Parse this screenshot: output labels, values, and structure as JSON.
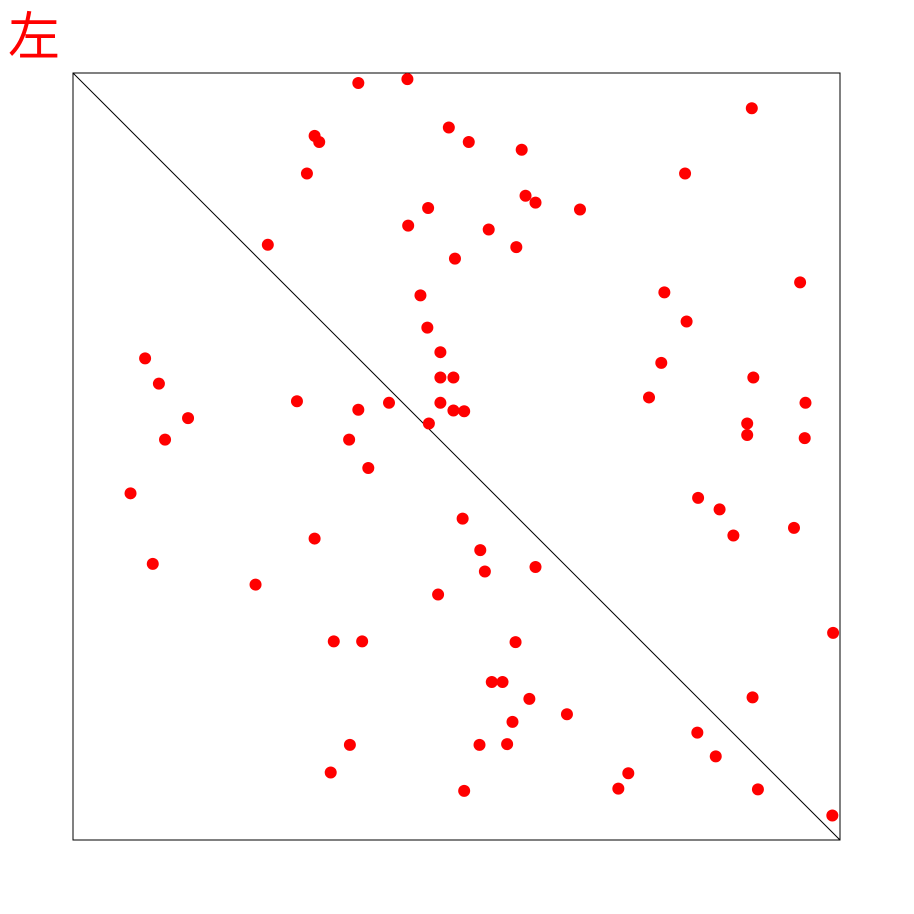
{
  "label": "左",
  "colors": {
    "points": "#ff0000",
    "frame": "#000000",
    "diagonal": "#000000",
    "label": "#ff0000"
  },
  "chart_data": {
    "type": "scatter",
    "title": "",
    "xlabel": "",
    "ylabel": "",
    "xlim": [
      0,
      1
    ],
    "ylim": [
      0,
      1
    ],
    "grid": false,
    "diagonal": {
      "from": [
        0,
        1
      ],
      "to": [
        1,
        0
      ]
    },
    "points": [
      [
        0.372,
        0.987
      ],
      [
        0.436,
        0.992
      ],
      [
        0.885,
        0.954
      ],
      [
        0.49,
        0.929
      ],
      [
        0.516,
        0.91
      ],
      [
        0.315,
        0.918
      ],
      [
        0.321,
        0.91
      ],
      [
        0.585,
        0.9
      ],
      [
        0.305,
        0.869
      ],
      [
        0.798,
        0.869
      ],
      [
        0.59,
        0.84
      ],
      [
        0.603,
        0.831
      ],
      [
        0.661,
        0.822
      ],
      [
        0.463,
        0.824
      ],
      [
        0.437,
        0.801
      ],
      [
        0.542,
        0.796
      ],
      [
        0.254,
        0.776
      ],
      [
        0.578,
        0.773
      ],
      [
        0.498,
        0.758
      ],
      [
        0.948,
        0.727
      ],
      [
        0.771,
        0.714
      ],
      [
        0.453,
        0.71
      ],
      [
        0.8,
        0.676
      ],
      [
        0.462,
        0.668
      ],
      [
        0.094,
        0.628
      ],
      [
        0.767,
        0.622
      ],
      [
        0.479,
        0.636
      ],
      [
        0.112,
        0.595
      ],
      [
        0.479,
        0.603
      ],
      [
        0.496,
        0.603
      ],
      [
        0.887,
        0.603
      ],
      [
        0.751,
        0.577
      ],
      [
        0.292,
        0.572
      ],
      [
        0.479,
        0.57
      ],
      [
        0.412,
        0.57
      ],
      [
        0.372,
        0.561
      ],
      [
        0.496,
        0.56
      ],
      [
        0.51,
        0.559
      ],
      [
        0.955,
        0.57
      ],
      [
        0.15,
        0.55
      ],
      [
        0.879,
        0.543
      ],
      [
        0.464,
        0.543
      ],
      [
        0.879,
        0.528
      ],
      [
        0.36,
        0.522
      ],
      [
        0.12,
        0.522
      ],
      [
        0.954,
        0.524
      ],
      [
        0.385,
        0.485
      ],
      [
        0.075,
        0.452
      ],
      [
        0.815,
        0.446
      ],
      [
        0.843,
        0.431
      ],
      [
        0.94,
        0.407
      ],
      [
        0.861,
        0.397
      ],
      [
        0.508,
        0.419
      ],
      [
        0.315,
        0.393
      ],
      [
        0.531,
        0.378
      ],
      [
        0.104,
        0.36
      ],
      [
        0.537,
        0.35
      ],
      [
        0.603,
        0.356
      ],
      [
        0.238,
        0.333
      ],
      [
        0.476,
        0.32
      ],
      [
        0.991,
        0.27
      ],
      [
        0.34,
        0.259
      ],
      [
        0.377,
        0.259
      ],
      [
        0.577,
        0.258
      ],
      [
        0.546,
        0.206
      ],
      [
        0.56,
        0.206
      ],
      [
        0.886,
        0.186
      ],
      [
        0.595,
        0.184
      ],
      [
        0.644,
        0.164
      ],
      [
        0.573,
        0.154
      ],
      [
        0.814,
        0.14
      ],
      [
        0.361,
        0.124
      ],
      [
        0.53,
        0.124
      ],
      [
        0.566,
        0.125
      ],
      [
        0.838,
        0.109
      ],
      [
        0.336,
        0.088
      ],
      [
        0.724,
        0.087
      ],
      [
        0.51,
        0.064
      ],
      [
        0.711,
        0.067
      ],
      [
        0.893,
        0.066
      ],
      [
        0.99,
        0.032
      ]
    ]
  }
}
